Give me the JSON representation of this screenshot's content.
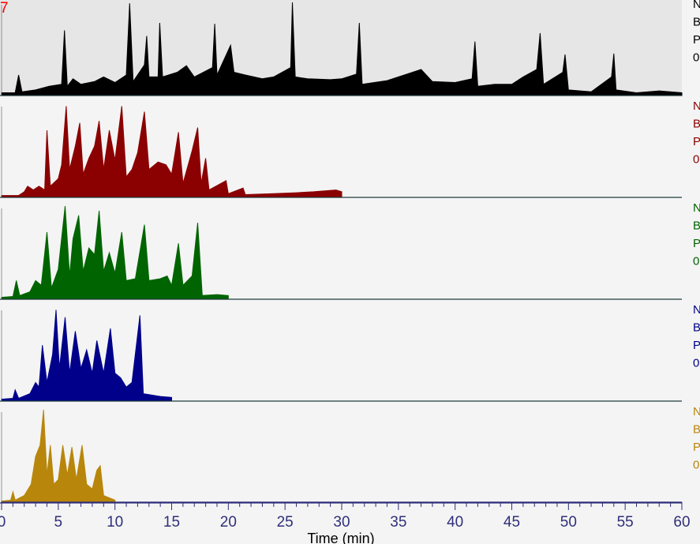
{
  "chart_data": {
    "type": "line",
    "title": "",
    "xlabel": "Time (min)",
    "ylabel": "",
    "xlim": [
      0,
      60
    ],
    "x_ticks": [
      "0",
      "5",
      "10",
      "15",
      "20",
      "25",
      "30",
      "35",
      "40",
      "45",
      "50",
      "55",
      "60"
    ],
    "corner_mark": "7",
    "axis_color": "#2f2f7a",
    "series": [
      {
        "color": "#000000",
        "legend_lines": [
          "N",
          "B",
          "P",
          "0"
        ],
        "points": [
          [
            0.0,
            0.03
          ],
          [
            1.2,
            0.03
          ],
          [
            1.5,
            0.22
          ],
          [
            1.8,
            0.04
          ],
          [
            3.0,
            0.06
          ],
          [
            4.2,
            0.1
          ],
          [
            5.3,
            0.12
          ],
          [
            5.55,
            0.7
          ],
          [
            5.8,
            0.1
          ],
          [
            6.3,
            0.18
          ],
          [
            7.0,
            0.12
          ],
          [
            8.2,
            0.15
          ],
          [
            9.0,
            0.2
          ],
          [
            10.0,
            0.14
          ],
          [
            11.0,
            0.22
          ],
          [
            11.3,
            0.99
          ],
          [
            11.6,
            0.15
          ],
          [
            12.6,
            0.33
          ],
          [
            12.8,
            0.64
          ],
          [
            13.0,
            0.2
          ],
          [
            13.8,
            0.2
          ],
          [
            13.95,
            0.78
          ],
          [
            14.2,
            0.2
          ],
          [
            15.5,
            0.25
          ],
          [
            16.3,
            0.32
          ],
          [
            17.0,
            0.2
          ],
          [
            18.6,
            0.3
          ],
          [
            18.8,
            0.77
          ],
          [
            19.0,
            0.22
          ],
          [
            20.2,
            0.54
          ],
          [
            20.5,
            0.25
          ],
          [
            21.5,
            0.22
          ],
          [
            23.0,
            0.18
          ],
          [
            24.0,
            0.2
          ],
          [
            25.5,
            0.3
          ],
          [
            25.65,
            1.0
          ],
          [
            25.9,
            0.2
          ],
          [
            27.0,
            0.18
          ],
          [
            29.0,
            0.17
          ],
          [
            30.0,
            0.18
          ],
          [
            31.3,
            0.23
          ],
          [
            31.55,
            0.78
          ],
          [
            31.8,
            0.12
          ],
          [
            34.0,
            0.16
          ],
          [
            37.0,
            0.28
          ],
          [
            38.0,
            0.15
          ],
          [
            40.0,
            0.14
          ],
          [
            41.5,
            0.18
          ],
          [
            41.75,
            0.58
          ],
          [
            42.0,
            0.1
          ],
          [
            43.5,
            0.12
          ],
          [
            45.0,
            0.12
          ],
          [
            46.0,
            0.2
          ],
          [
            47.2,
            0.28
          ],
          [
            47.5,
            0.67
          ],
          [
            47.8,
            0.12
          ],
          [
            49.5,
            0.25
          ],
          [
            49.7,
            0.44
          ],
          [
            50.0,
            0.06
          ],
          [
            52.0,
            0.04
          ],
          [
            53.8,
            0.2
          ],
          [
            54.0,
            0.45
          ],
          [
            54.2,
            0.06
          ],
          [
            56.0,
            0.03
          ],
          [
            58.0,
            0.05
          ],
          [
            60.0,
            0.03
          ]
        ]
      },
      {
        "color": "#8b0000",
        "legend_lines": [
          "N",
          "B",
          "P",
          "0"
        ],
        "points": [
          [
            0.0,
            0.02
          ],
          [
            1.5,
            0.02
          ],
          [
            2.0,
            0.06
          ],
          [
            2.3,
            0.12
          ],
          [
            2.8,
            0.08
          ],
          [
            3.3,
            0.12
          ],
          [
            3.8,
            0.08
          ],
          [
            4.0,
            0.72
          ],
          [
            4.3,
            0.12
          ],
          [
            5.0,
            0.2
          ],
          [
            5.3,
            0.35
          ],
          [
            5.7,
            0.98
          ],
          [
            6.0,
            0.3
          ],
          [
            6.5,
            0.55
          ],
          [
            6.9,
            0.8
          ],
          [
            7.2,
            0.25
          ],
          [
            7.7,
            0.42
          ],
          [
            8.2,
            0.55
          ],
          [
            8.6,
            0.82
          ],
          [
            9.0,
            0.3
          ],
          [
            9.5,
            0.72
          ],
          [
            10.0,
            0.4
          ],
          [
            10.6,
            0.98
          ],
          [
            11.0,
            0.22
          ],
          [
            11.5,
            0.3
          ],
          [
            12.0,
            0.48
          ],
          [
            12.6,
            0.92
          ],
          [
            13.0,
            0.3
          ],
          [
            13.8,
            0.38
          ],
          [
            14.5,
            0.35
          ],
          [
            15.0,
            0.25
          ],
          [
            15.6,
            0.7
          ],
          [
            16.0,
            0.15
          ],
          [
            16.8,
            0.5
          ],
          [
            17.3,
            0.75
          ],
          [
            17.6,
            0.15
          ],
          [
            18.0,
            0.42
          ],
          [
            18.3,
            0.08
          ],
          [
            19.8,
            0.18
          ],
          [
            20.0,
            0.04
          ],
          [
            21.3,
            0.1
          ],
          [
            21.5,
            0.03
          ],
          [
            24.0,
            0.04
          ],
          [
            26.0,
            0.05
          ],
          [
            27.5,
            0.06
          ],
          [
            28.5,
            0.07
          ],
          [
            29.5,
            0.08
          ],
          [
            30.0,
            0.06
          ]
        ]
      },
      {
        "color": "#006400",
        "legend_lines": [
          "N",
          "B",
          "P",
          "0"
        ],
        "points": [
          [
            0.0,
            0.02
          ],
          [
            1.0,
            0.03
          ],
          [
            1.3,
            0.2
          ],
          [
            1.6,
            0.04
          ],
          [
            2.5,
            0.08
          ],
          [
            3.0,
            0.2
          ],
          [
            3.5,
            0.15
          ],
          [
            4.0,
            0.72
          ],
          [
            4.4,
            0.12
          ],
          [
            5.0,
            0.32
          ],
          [
            5.6,
            1.0
          ],
          [
            6.0,
            0.25
          ],
          [
            6.3,
            0.65
          ],
          [
            6.8,
            0.9
          ],
          [
            7.2,
            0.3
          ],
          [
            7.7,
            0.55
          ],
          [
            8.2,
            0.48
          ],
          [
            8.6,
            0.95
          ],
          [
            9.0,
            0.3
          ],
          [
            9.5,
            0.5
          ],
          [
            10.0,
            0.28
          ],
          [
            10.6,
            0.72
          ],
          [
            11.0,
            0.2
          ],
          [
            11.8,
            0.22
          ],
          [
            12.6,
            0.8
          ],
          [
            13.0,
            0.2
          ],
          [
            14.0,
            0.22
          ],
          [
            14.6,
            0.25
          ],
          [
            15.0,
            0.15
          ],
          [
            15.6,
            0.6
          ],
          [
            16.0,
            0.15
          ],
          [
            16.8,
            0.25
          ],
          [
            17.3,
            0.82
          ],
          [
            17.7,
            0.04
          ],
          [
            19.0,
            0.05
          ],
          [
            20.0,
            0.04
          ]
        ]
      },
      {
        "color": "#00008b",
        "legend_lines": [
          "N",
          "B",
          "P",
          "0"
        ],
        "points": [
          [
            0.0,
            0.02
          ],
          [
            1.0,
            0.03
          ],
          [
            1.2,
            0.12
          ],
          [
            1.5,
            0.03
          ],
          [
            2.5,
            0.08
          ],
          [
            3.0,
            0.2
          ],
          [
            3.3,
            0.15
          ],
          [
            3.6,
            0.6
          ],
          [
            4.0,
            0.2
          ],
          [
            4.5,
            0.5
          ],
          [
            4.8,
            0.98
          ],
          [
            5.1,
            0.35
          ],
          [
            5.6,
            0.9
          ],
          [
            6.0,
            0.3
          ],
          [
            6.5,
            0.75
          ],
          [
            7.0,
            0.35
          ],
          [
            7.5,
            0.55
          ],
          [
            8.0,
            0.3
          ],
          [
            8.4,
            0.65
          ],
          [
            9.0,
            0.3
          ],
          [
            9.6,
            0.78
          ],
          [
            10.0,
            0.3
          ],
          [
            10.5,
            0.25
          ],
          [
            11.0,
            0.15
          ],
          [
            11.5,
            0.2
          ],
          [
            12.2,
            0.92
          ],
          [
            12.5,
            0.08
          ],
          [
            14.0,
            0.05
          ],
          [
            15.0,
            0.04
          ]
        ]
      },
      {
        "color": "#b8860b",
        "legend_lines": [
          "N",
          "B",
          "P",
          "0"
        ],
        "points": [
          [
            0.0,
            0.02
          ],
          [
            0.8,
            0.03
          ],
          [
            1.0,
            0.12
          ],
          [
            1.2,
            0.03
          ],
          [
            2.0,
            0.08
          ],
          [
            2.6,
            0.2
          ],
          [
            3.0,
            0.5
          ],
          [
            3.4,
            0.62
          ],
          [
            3.7,
            1.0
          ],
          [
            4.0,
            0.3
          ],
          [
            4.3,
            0.62
          ],
          [
            4.6,
            0.2
          ],
          [
            5.0,
            0.25
          ],
          [
            5.4,
            0.62
          ],
          [
            5.8,
            0.3
          ],
          [
            6.2,
            0.6
          ],
          [
            6.6,
            0.25
          ],
          [
            7.1,
            0.62
          ],
          [
            7.5,
            0.2
          ],
          [
            8.0,
            0.15
          ],
          [
            8.4,
            0.35
          ],
          [
            8.7,
            0.4
          ],
          [
            9.0,
            0.08
          ],
          [
            10.0,
            0.03
          ]
        ]
      }
    ]
  }
}
